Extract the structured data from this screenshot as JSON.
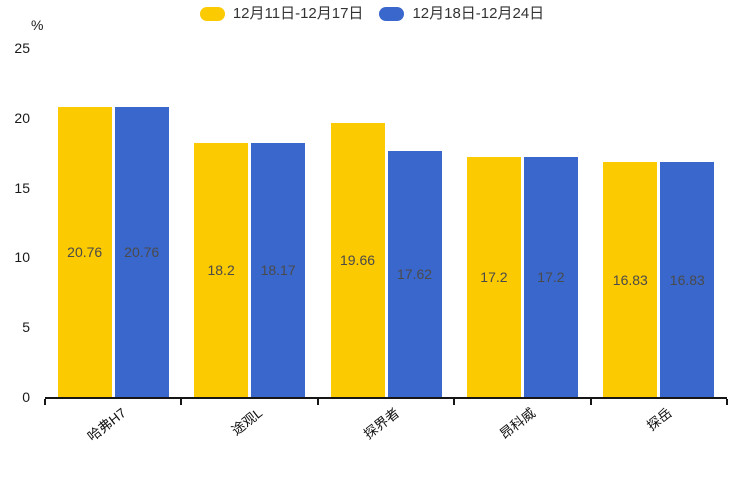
{
  "chart_data": {
    "type": "bar",
    "title": "",
    "unit_label": "%",
    "categories": [
      "哈弗H7",
      "途观L",
      "探界者",
      "昂科威",
      "探岳"
    ],
    "series": [
      {
        "name": "12月11日-12月17日",
        "color": "#fcca00",
        "values": [
          20.76,
          18.2,
          19.66,
          17.2,
          16.83
        ]
      },
      {
        "name": "12月18日-12月24日",
        "color": "#3a67cb",
        "values": [
          20.76,
          18.17,
          17.62,
          17.2,
          16.83
        ]
      }
    ],
    "ylim": [
      0,
      25
    ],
    "yticks": [
      0,
      5,
      10,
      15,
      20,
      25
    ],
    "legend_position": "top",
    "grid": false,
    "value_labels_inside_bars": true
  },
  "colors": {
    "axis": "#161616",
    "tick_label": "#1a1a1a",
    "value_label": "#4a4a4a",
    "legend_text": "#333333",
    "background": "#ffffff"
  }
}
